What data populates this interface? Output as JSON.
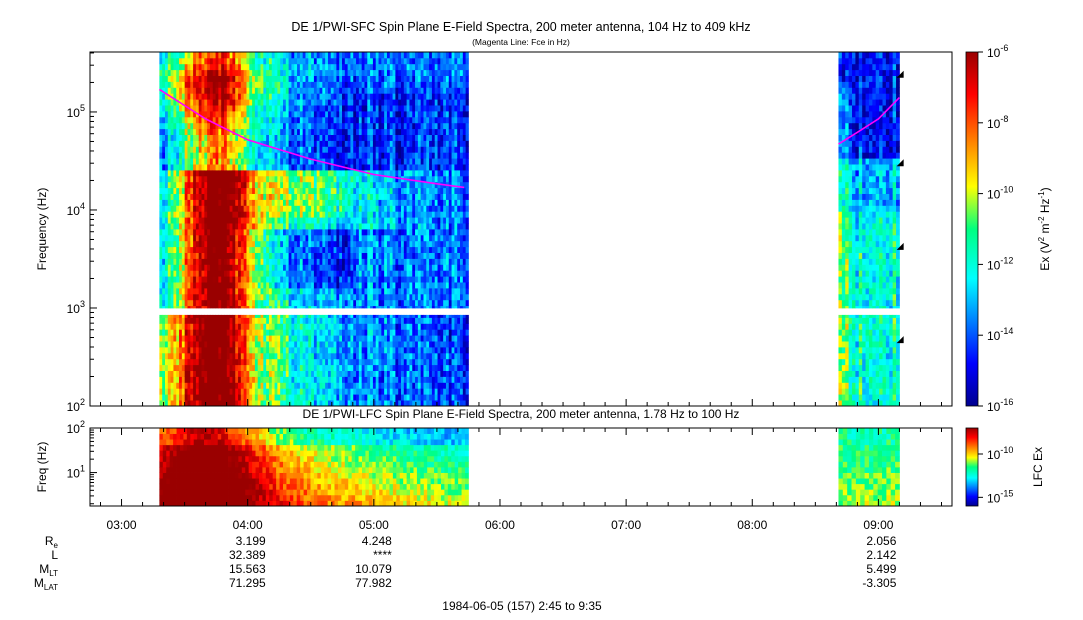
{
  "figure": {
    "title": "DE 1/PWI-SFC  Spin Plane E-Field Spectra, 200 meter antenna, 104 Hz to 409 kHz",
    "subtitle": "(Magenta Line: Fce in Hz)",
    "date_label": "1984-06-05 (157) 2:45 to 9:35"
  },
  "chart_data": [
    {
      "type": "heatmap",
      "name": "DE 1/PWI-SFC",
      "title": "DE 1/PWI-SFC  Spin Plane E-Field Spectra, 200 meter antenna, 104 Hz to 409 kHz",
      "subtitle": "(Magenta Line: Fce in Hz)",
      "ylabel": "Frequency (Hz)",
      "y_scale": "log",
      "ylim": [
        100,
        409000
      ],
      "y_ticks": [
        {
          "value": 100,
          "base": "10",
          "exp": "2"
        },
        {
          "value": 1000,
          "base": "10",
          "exp": "3"
        },
        {
          "value": 10000,
          "base": "10",
          "exp": "4"
        },
        {
          "value": 100000,
          "base": "10",
          "exp": "5"
        }
      ],
      "xlim": [
        "02:45",
        "09:35"
      ],
      "data_intervals": [
        {
          "start": "03:18",
          "end": "05:45"
        },
        {
          "start": "08:41",
          "end": "09:10"
        }
      ],
      "data_gap_freq_hz": [
        850,
        1000
      ],
      "colorbar": {
        "label": "Ex (V",
        "label_parts": [
          "Ex (V",
          "2",
          " m",
          "-2",
          " Hz",
          "-1",
          ")"
        ],
        "scale": "log",
        "range": [
          1e-16,
          1e-06
        ],
        "ticks": [
          {
            "value": 1e-06,
            "base": "10",
            "exp": "-6"
          },
          {
            "value": 1e-08,
            "base": "10",
            "exp": "-8"
          },
          {
            "value": 1e-10,
            "base": "10",
            "exp": "-10"
          },
          {
            "value": 1e-12,
            "base": "10",
            "exp": "-12"
          },
          {
            "value": 1e-14,
            "base": "10",
            "exp": "-14"
          },
          {
            "value": 1e-16,
            "base": "10",
            "exp": "-16"
          }
        ]
      },
      "fce_line": {
        "color": "#ff00ff",
        "segments": [
          {
            "x": [
              "03:18",
              "03:40",
              "04:00",
              "04:30",
              "05:00",
              "05:30",
              "05:43"
            ],
            "y": [
              170000,
              85000,
              52000,
              33000,
              23000,
              18500,
              17000
            ]
          },
          {
            "x": [
              "08:41",
              "08:50",
              "09:00",
              "09:10"
            ],
            "y": [
              47000,
              62000,
              85000,
              140000
            ]
          }
        ]
      },
      "markers": [
        {
          "x": "09:12",
          "y": 240000
        },
        {
          "x": "09:12",
          "y": 30000
        },
        {
          "x": "09:12",
          "y": 4200
        },
        {
          "x": "09:12",
          "y": 470
        }
      ]
    },
    {
      "type": "heatmap",
      "name": "DE 1/PWI-LFC",
      "title": "DE 1/PWI-LFC  Spin Plane E-Field Spectra, 200 meter antenna, 1.78 Hz to 100 Hz",
      "ylabel": "Freq (Hz)",
      "y_scale": "log",
      "ylim": [
        1.78,
        100
      ],
      "y_ticks": [
        {
          "value": 10,
          "base": "10",
          "exp": "1"
        },
        {
          "value": 100,
          "base": "10",
          "exp": "2"
        }
      ],
      "xlim": [
        "02:45",
        "09:35"
      ],
      "data_intervals": [
        {
          "start": "03:18",
          "end": "05:45"
        },
        {
          "start": "08:41",
          "end": "09:10"
        }
      ],
      "colorbar": {
        "label": "LFC Ex",
        "scale": "log",
        "range": [
          1e-16,
          1e-07
        ],
        "ticks": [
          {
            "value": 1e-10,
            "base": "10",
            "exp": "-10"
          },
          {
            "value": 1e-15,
            "base": "10",
            "exp": "-15"
          }
        ]
      }
    }
  ],
  "x_axis": {
    "ticks": [
      "03:00",
      "04:00",
      "05:00",
      "06:00",
      "07:00",
      "08:00",
      "09:00"
    ]
  },
  "ephemeris": {
    "rows": [
      {
        "label": "R",
        "sub": "e",
        "values": [
          {
            "x": "04:00",
            "v": "3.199"
          },
          {
            "x": "05:00",
            "v": "4.248"
          },
          {
            "x": "09:00",
            "v": "2.056"
          }
        ]
      },
      {
        "label": "L",
        "sub": "",
        "values": [
          {
            "x": "04:00",
            "v": "32.389"
          },
          {
            "x": "05:00",
            "v": "****"
          },
          {
            "x": "09:00",
            "v": "2.142"
          }
        ]
      },
      {
        "label": "M",
        "sub": "LT",
        "values": [
          {
            "x": "04:00",
            "v": "15.563"
          },
          {
            "x": "05:00",
            "v": "10.079"
          },
          {
            "x": "09:00",
            "v": "5.499"
          }
        ]
      },
      {
        "label": "M",
        "sub": "LAT",
        "values": [
          {
            "x": "04:00",
            "v": "71.295"
          },
          {
            "x": "05:00",
            "v": "77.982"
          },
          {
            "x": "09:00",
            "v": "-3.305"
          }
        ]
      }
    ]
  }
}
